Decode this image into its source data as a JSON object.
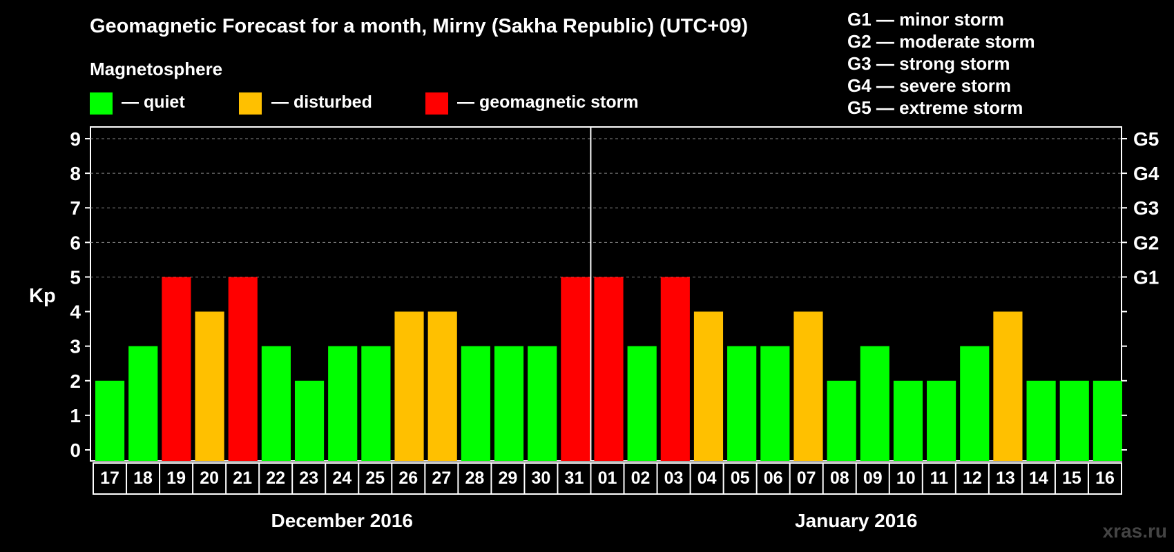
{
  "title": "Geomagnetic Forecast for a month, Mirny (Sakha Republic) (UTC+09)",
  "legend": {
    "heading": "Magnetosphere",
    "items": [
      {
        "label": "— quiet",
        "color": "#00ff00"
      },
      {
        "label": "— disturbed",
        "color": "#ffc000"
      },
      {
        "label": "— geomagnetic storm",
        "color": "#ff0000"
      }
    ]
  },
  "g_scale": [
    "G1 — minor storm",
    "G2 — moderate storm",
    "G3 — strong storm",
    "G4 — severe storm",
    "G5 — extreme storm"
  ],
  "watermark": "xras.ru",
  "chart_data": {
    "type": "bar",
    "ylabel": "Kp",
    "ylim": [
      0,
      9
    ],
    "yticks": [
      0,
      1,
      2,
      3,
      4,
      5,
      6,
      7,
      8,
      9
    ],
    "right_axis_labels": [
      {
        "kp": 5,
        "label": "G1"
      },
      {
        "kp": 6,
        "label": "G2"
      },
      {
        "kp": 7,
        "label": "G3"
      },
      {
        "kp": 8,
        "label": "G4"
      },
      {
        "kp": 9,
        "label": "G5"
      }
    ],
    "categories": [
      "17",
      "18",
      "19",
      "20",
      "21",
      "22",
      "23",
      "24",
      "25",
      "26",
      "27",
      "28",
      "29",
      "30",
      "31",
      "01",
      "02",
      "03",
      "04",
      "05",
      "06",
      "07",
      "08",
      "09",
      "10",
      "11",
      "12",
      "13",
      "14",
      "15",
      "16"
    ],
    "values": [
      2,
      3,
      5,
      4,
      5,
      3,
      2,
      3,
      3,
      4,
      4,
      3,
      3,
      3,
      5,
      5,
      3,
      5,
      4,
      3,
      3,
      4,
      2,
      3,
      2,
      2,
      3,
      4,
      2,
      2,
      2
    ],
    "month_groups": [
      {
        "label": "December 2016",
        "start": 0,
        "end": 14
      },
      {
        "label": "January 2016",
        "start": 15,
        "end": 30
      }
    ],
    "color_rule": {
      "quiet_max": 3,
      "disturbed": 4,
      "storm_min": 5
    },
    "colors": {
      "quiet": "#00ff00",
      "disturbed": "#ffc000",
      "storm": "#ff0000",
      "grid": "#888888"
    }
  }
}
